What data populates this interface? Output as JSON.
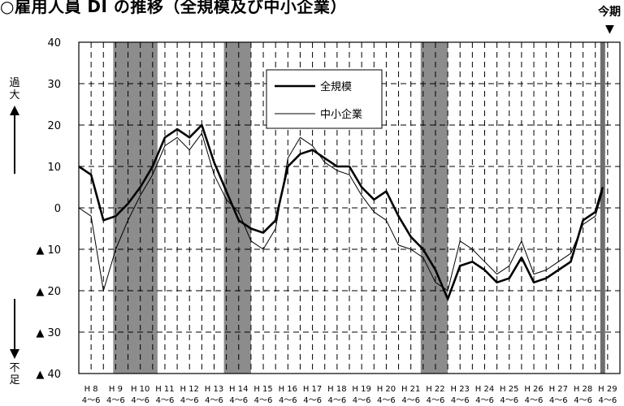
{
  "title": "○雇用人員 DI の推移（全規模及び中小企業）",
  "current_period_label": "今期",
  "current_arrow_glyph": "▼",
  "vertical_label_up": [
    "過",
    "大"
  ],
  "vertical_label_down": [
    "不",
    "足"
  ],
  "colors": {
    "shade": "#8c8c8c",
    "current_bar": "#6e6e6e",
    "line": "#000000"
  },
  "chart_data": {
    "type": "line",
    "title": "○雇用人員 DI の推移（全規模及び中小企業）",
    "xlabel": "",
    "ylabel": "",
    "ylim": [
      -40,
      40
    ],
    "y_ticks": [
      40,
      30,
      20,
      10,
      0,
      -10,
      -20,
      -30,
      -40
    ],
    "y_tick_labels": [
      "40",
      "30",
      "20",
      "10",
      "0",
      "▲ 10",
      "▲ 20",
      "▲ 30",
      "▲ 40"
    ],
    "x_year_labels": [
      "H 8",
      "H 9",
      "H 10",
      "H 11",
      "H 12",
      "H 13",
      "H 14",
      "H 15",
      "H 16",
      "H 17",
      "H 18",
      "H 19",
      "H 20",
      "H 21",
      "H 22",
      "H 23",
      "H 24",
      "H 25",
      "H 26",
      "H 27",
      "H 28",
      "H 29"
    ],
    "x_quarter_label": "4～6",
    "x_range": [
      0,
      86
    ],
    "grid": true,
    "grid_style": "dashed vertical and horizontal lines",
    "legend_position": "top-right",
    "shaded_periods": [
      [
        1.4,
        3.2
      ],
      [
        5.9,
        7.0
      ],
      [
        13.9,
        15.0
      ]
    ],
    "current_period_year_index": 21.3,
    "series": [
      {
        "name": "全規模",
        "style": "thick",
        "x": [
          0,
          0.5,
          1,
          1.5,
          2,
          2.5,
          3,
          3.5,
          4,
          4.5,
          5,
          5.5,
          6,
          6.5,
          7,
          7.5,
          8,
          8.5,
          9,
          9.5,
          10,
          10.5,
          11,
          11.5,
          12,
          12.5,
          13,
          13.5,
          14,
          14.5,
          15,
          15.5,
          16,
          16.5,
          17,
          17.5,
          18,
          18.5,
          19,
          19.5,
          20,
          20.5,
          21,
          21.3
        ],
        "y": [
          10,
          8,
          -3,
          -2,
          1,
          5,
          10,
          17,
          19,
          17,
          20,
          11,
          4,
          -3,
          -5,
          -6,
          -3,
          10,
          13,
          14,
          12,
          10,
          10,
          5,
          2,
          4,
          -2,
          -7,
          -10,
          -15,
          -22,
          -14,
          -13,
          -15,
          -18,
          -17,
          -12,
          -18,
          -17,
          -15,
          -13,
          -3,
          -1,
          5
        ]
      },
      {
        "name": "中小企業",
        "style": "thin",
        "x": [
          0,
          0.5,
          1,
          1.5,
          2,
          2.5,
          3,
          3.5,
          4,
          4.5,
          5,
          5.5,
          6,
          6.5,
          7,
          7.5,
          8,
          8.5,
          9,
          9.5,
          10,
          10.5,
          11,
          11.5,
          12,
          12.5,
          13,
          13.5,
          14,
          14.5,
          15,
          15.5,
          16,
          16.5,
          17,
          17.5,
          18,
          18.5,
          19,
          19.5,
          20,
          20.5,
          21,
          21.3
        ],
        "y": [
          0,
          -2,
          -20,
          -10,
          -3,
          3,
          8,
          15,
          17,
          14,
          18,
          8,
          2,
          -1,
          -8,
          -10,
          -5,
          12,
          17,
          15,
          11,
          9,
          8,
          3,
          -1,
          -3,
          -9,
          -10,
          -12,
          -18,
          -20,
          -8,
          -10,
          -13,
          -16,
          -14,
          -8,
          -16,
          -15,
          -13,
          -11,
          -4,
          -2,
          4
        ]
      }
    ]
  }
}
